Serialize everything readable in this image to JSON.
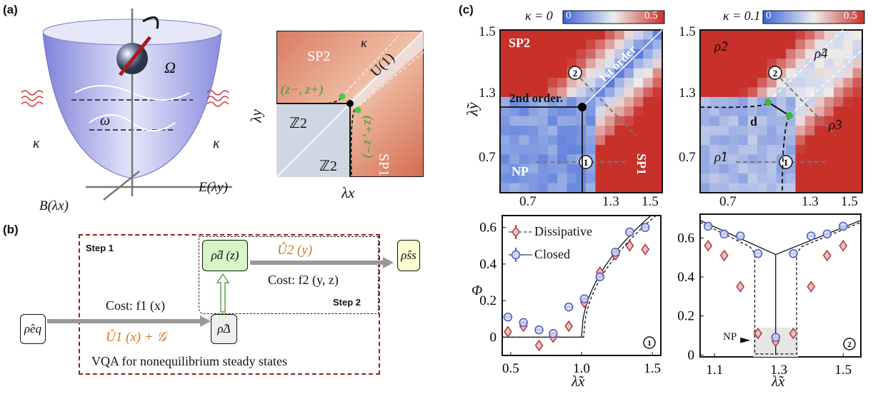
{
  "panel_a": {
    "label": "(a)",
    "omega_big": "Ω",
    "omega": "ω",
    "kappa": "κ",
    "e_axis": "E(λy)",
    "b_axis": "B(λx)",
    "phase": {
      "sp2": "SP2",
      "sp1": "SP1",
      "u1": "U(1)",
      "z2": "ℤ2",
      "pt_a": "(z−, z+)",
      "pt_b": "(z+, z−)",
      "kappa": "κ",
      "xlabel": "λx",
      "ylabel": "λy"
    }
  },
  "panel_b": {
    "label": "(b)",
    "step1": "Step 1",
    "step2": "Step 2",
    "rho_eq": "ρ̂eq",
    "rho_delta": "ρ̂Δ",
    "rho_d": "ρ̂d (z)",
    "rho_ss": "ρ̂ss",
    "u1": "Û1 (x) + 𝒢",
    "u2": "Û2 (y)",
    "cost1": "Cost:  f1 (x)",
    "cost2": "Cost:  f2 (y, z)",
    "caption": "VQA for nonequilibrium steady states",
    "colors": {
      "step_box": "#a01a1a",
      "rho_d_fill": "#d6f5c8",
      "rho_ss_fill": "#fdfbd0",
      "rho_delta_fill": "#eeeeee",
      "operator": "#cc7a2a"
    }
  },
  "panel_c": {
    "label": "(c)",
    "heatmaps": [
      {
        "title": "κ = 0",
        "cbar": [
          "0",
          "0.5"
        ],
        "labels": {
          "sp2": "SP2",
          "np": "NP",
          "sp1": "SP1",
          "first": "1st order",
          "second": "2nd order.",
          "path1": "1",
          "path2": "2"
        }
      },
      {
        "title": "κ = 0.1",
        "cbar": [
          "0",
          "0.5"
        ],
        "labels": {
          "r1": "ρ̂1",
          "r2": "ρ̂2",
          "r3": "ρ̂3",
          "r4": "ρ̂4",
          "d": "d",
          "path1": "1",
          "path2": "2"
        }
      }
    ],
    "heat_axes": {
      "xticks": [
        "0.7",
        "1.3",
        "1.5"
      ],
      "yticks": [
        "1.5",
        "1.3",
        "0.7"
      ],
      "xlabel": "λ̃x",
      "ylabel": "λ̃y"
    },
    "colorscale": {
      "low": "#3a64d8",
      "mid": "#eeeeee",
      "high": "#c8302a"
    }
  },
  "chart_data": [
    {
      "type": "scatter",
      "ylabel": "Φ",
      "xlabel": "λ̃x",
      "xlim": [
        0.44,
        1.56
      ],
      "ylim": [
        -0.1,
        0.665
      ],
      "xticks": [
        "0.5",
        "1.0",
        "1.5"
      ],
      "yticks": [
        "0",
        "0.2",
        "0.4",
        "0.6"
      ],
      "badge": "1",
      "legend_position": "top-left",
      "series": [
        {
          "name": "Dissipative",
          "marker": "diamond",
          "color": "#c0303a",
          "x": [
            0.48,
            0.59,
            0.7,
            0.8,
            0.91,
            1.02,
            1.13,
            1.24,
            1.34,
            1.45
          ],
          "y": [
            0.03,
            0.06,
            -0.045,
            0.0,
            0.06,
            0.19,
            0.355,
            0.45,
            0.5,
            0.48
          ]
        },
        {
          "name": "Closed",
          "marker": "circle",
          "color": "#4a5ad0",
          "x": [
            0.48,
            0.59,
            0.7,
            0.8,
            0.91,
            1.02,
            1.13,
            1.24,
            1.34,
            1.45
          ],
          "y": [
            0.11,
            0.08,
            0.04,
            0.02,
            0.165,
            0.21,
            0.33,
            0.465,
            0.575,
            0.6
          ]
        }
      ]
    },
    {
      "type": "scatter",
      "xlabel": "λ̃x",
      "xlim": [
        1.055,
        1.555
      ],
      "ylim": [
        -0.01,
        0.722
      ],
      "xticks": [
        "1.1",
        "1.3",
        "1.5"
      ],
      "yticks": [
        "0",
        "0.2",
        "0.4",
        "0.6"
      ],
      "badge": "2",
      "annotation": "NP",
      "series": [
        {
          "marker": "diamond",
          "color": "#c0303a",
          "x": [
            1.08,
            1.13,
            1.18,
            1.235,
            1.29,
            1.345,
            1.4,
            1.45,
            1.5
          ],
          "y": [
            0.56,
            0.51,
            0.35,
            0.11,
            0.07,
            0.11,
            0.35,
            0.51,
            0.56
          ]
        },
        {
          "marker": "circle",
          "color": "#4a5ad0",
          "x": [
            1.08,
            1.13,
            1.18,
            1.235,
            1.29,
            1.345,
            1.4,
            1.45,
            1.5
          ],
          "y": [
            0.66,
            0.62,
            0.61,
            0.52,
            0.09,
            0.52,
            0.61,
            0.62,
            0.66
          ]
        }
      ]
    }
  ]
}
